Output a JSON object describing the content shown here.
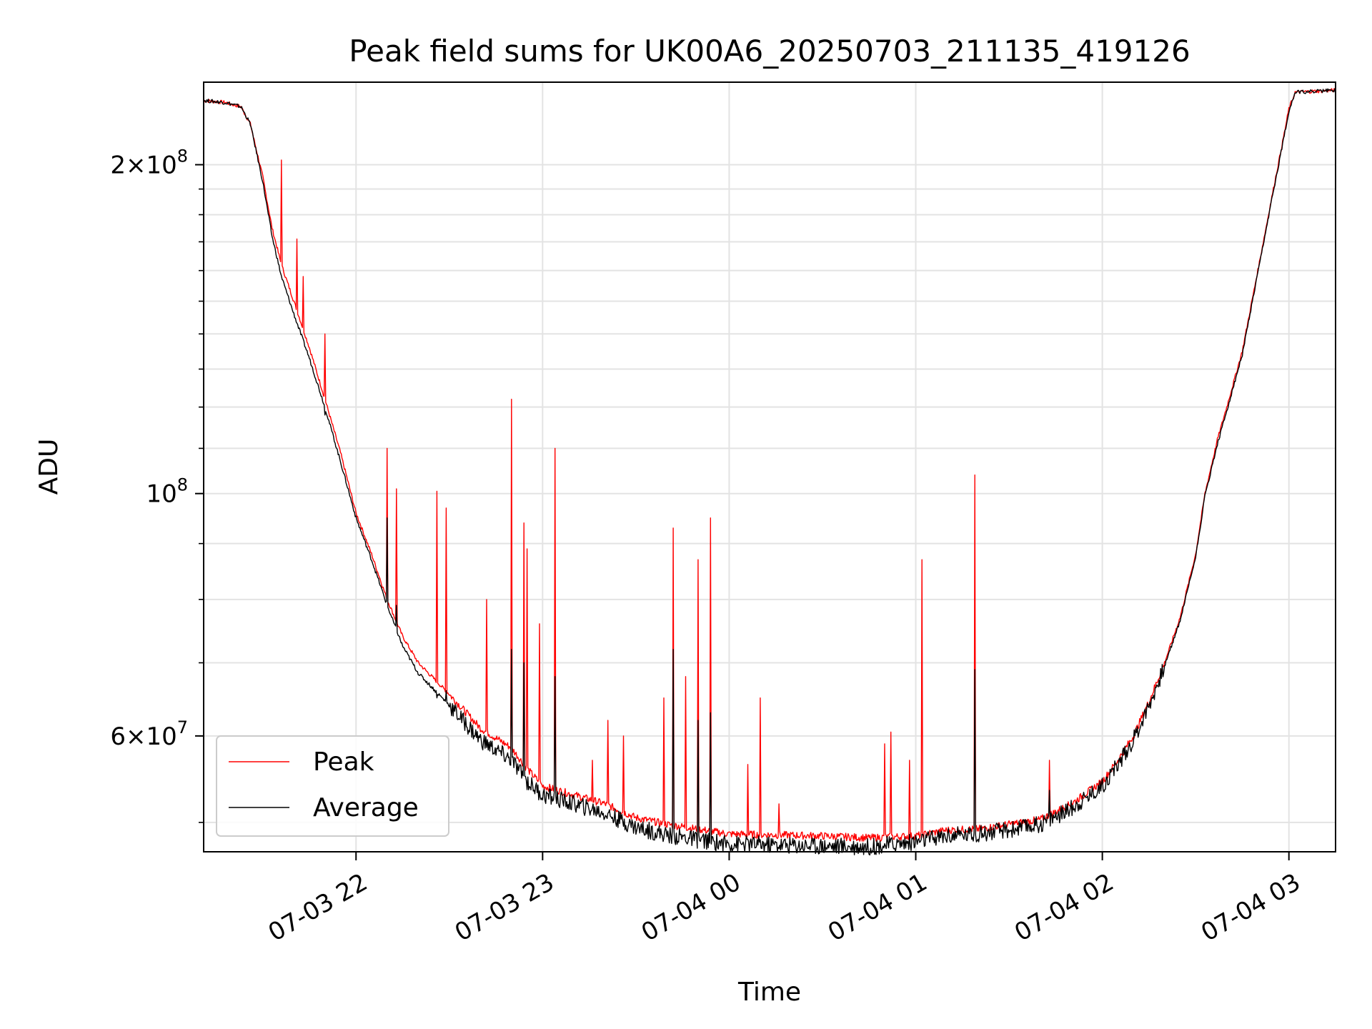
{
  "chart_data": {
    "type": "line",
    "title": "Peak field sums for UK00A6_20250703_211135_419126",
    "xlabel": "Time",
    "ylabel": "ADU",
    "y_scale": "log",
    "ylim": [
      47000000,
      238000000
    ],
    "xlim": [
      "07-03 21:11",
      "07-04 03:15"
    ],
    "x_ticks": [
      "07-03 22",
      "07-03 23",
      "07-04 00",
      "07-04 01",
      "07-04 02",
      "07-04 03"
    ],
    "y_ticks": [
      {
        "value": 200000000,
        "base": "2×10",
        "exp": "8"
      },
      {
        "value": 100000000,
        "base": "10",
        "exp": "8"
      },
      {
        "value": 60000000,
        "base": "6×10",
        "exp": "7"
      }
    ],
    "grid": true,
    "legend_position": "lower-left",
    "series": [
      {
        "name": "Peak",
        "color": "#ff0000",
        "baseline": [
          [
            "07-03 21:11",
            229000000
          ],
          [
            "07-03 21:18",
            228000000
          ],
          [
            "07-03 21:23",
            226000000
          ],
          [
            "07-03 21:26",
            218000000
          ],
          [
            "07-03 21:30",
            195000000
          ],
          [
            "07-03 21:33",
            175000000
          ],
          [
            "07-03 21:36",
            162000000
          ],
          [
            "07-03 21:40",
            150000000
          ],
          [
            "07-03 21:45",
            136000000
          ],
          [
            "07-03 21:50",
            122000000
          ],
          [
            "07-03 21:55",
            109000000
          ],
          [
            "07-03 22:00",
            96000000
          ],
          [
            "07-03 22:05",
            88000000
          ],
          [
            "07-03 22:10",
            80000000
          ],
          [
            "07-03 22:15",
            74000000
          ],
          [
            "07-03 22:20",
            70000000
          ],
          [
            "07-03 22:30",
            65500000
          ],
          [
            "07-03 22:40",
            61000000
          ],
          [
            "07-03 22:50",
            58500000
          ],
          [
            "07-03 22:55",
            56000000
          ],
          [
            "07-03 23:00",
            54000000
          ],
          [
            "07-03 23:10",
            53000000
          ],
          [
            "07-03 23:20",
            52000000
          ],
          [
            "07-03 23:30",
            50500000
          ],
          [
            "07-03 23:40",
            49800000
          ],
          [
            "07-03 23:50",
            49300000
          ],
          [
            "07-04 00:00",
            48800000
          ],
          [
            "07-04 00:15",
            48700000
          ],
          [
            "07-04 00:30",
            48600000
          ],
          [
            "07-04 00:45",
            48400000
          ],
          [
            "07-04 01:00",
            48600000
          ],
          [
            "07-04 01:10",
            49200000
          ],
          [
            "07-04 01:20",
            49300000
          ],
          [
            "07-04 01:30",
            49800000
          ],
          [
            "07-04 01:40",
            50300000
          ],
          [
            "07-04 01:50",
            52000000
          ],
          [
            "07-04 02:00",
            54500000
          ],
          [
            "07-04 02:05",
            57000000
          ],
          [
            "07-04 02:10",
            60000000
          ],
          [
            "07-04 02:15",
            64500000
          ],
          [
            "07-04 02:20",
            70000000
          ],
          [
            "07-04 02:25",
            77000000
          ],
          [
            "07-04 02:30",
            88000000
          ],
          [
            "07-04 02:33",
            100000000
          ],
          [
            "07-04 02:37",
            112000000
          ],
          [
            "07-04 02:40",
            120000000
          ],
          [
            "07-04 02:45",
            135000000
          ],
          [
            "07-04 02:50",
            160000000
          ],
          [
            "07-04 02:55",
            190000000
          ],
          [
            "07-04 02:58",
            210000000
          ],
          [
            "07-04 03:00",
            225000000
          ],
          [
            "07-04 03:02",
            233000000
          ],
          [
            "07-04 03:15",
            234000000
          ]
        ],
        "spikes": [
          [
            "07-03 21:36",
            202000000
          ],
          [
            "07-03 21:41",
            171000000
          ],
          [
            "07-03 21:43",
            158000000
          ],
          [
            "07-03 21:50",
            140000000
          ],
          [
            "07-03 22:10",
            110000000
          ],
          [
            "07-03 22:13",
            101000000
          ],
          [
            "07-03 22:26",
            100500000
          ],
          [
            "07-03 22:29",
            97000000
          ],
          [
            "07-03 22:42",
            80000000
          ],
          [
            "07-03 22:50",
            122000000
          ],
          [
            "07-03 22:54",
            94000000
          ],
          [
            "07-03 22:55",
            89000000
          ],
          [
            "07-03 22:59",
            76000000
          ],
          [
            "07-03 23:04",
            110000000
          ],
          [
            "07-03 23:16",
            57000000
          ],
          [
            "07-03 23:21",
            62000000
          ],
          [
            "07-03 23:26",
            60000000
          ],
          [
            "07-03 23:39",
            65000000
          ],
          [
            "07-03 23:42",
            93000000
          ],
          [
            "07-03 23:46",
            68000000
          ],
          [
            "07-03 23:50",
            87000000
          ],
          [
            "07-03 23:54",
            95000000
          ],
          [
            "07-04 00:06",
            56500000
          ],
          [
            "07-04 00:10",
            65000000
          ],
          [
            "07-04 00:16",
            52000000
          ],
          [
            "07-04 00:50",
            59000000
          ],
          [
            "07-04 00:52",
            60500000
          ],
          [
            "07-04 00:58",
            57000000
          ],
          [
            "07-04 01:02",
            87000000
          ],
          [
            "07-04 01:19",
            104000000
          ],
          [
            "07-04 01:43",
            57000000
          ]
        ]
      },
      {
        "name": "Average",
        "color": "#000000",
        "baseline": [
          [
            "07-03 21:11",
            229000000
          ],
          [
            "07-03 21:18",
            228000000
          ],
          [
            "07-03 21:23",
            226000000
          ],
          [
            "07-03 21:26",
            218000000
          ],
          [
            "07-03 21:30",
            193000000
          ],
          [
            "07-03 21:33",
            172000000
          ],
          [
            "07-03 21:36",
            158000000
          ],
          [
            "07-03 21:40",
            146000000
          ],
          [
            "07-03 21:45",
            133000000
          ],
          [
            "07-03 21:50",
            120000000
          ],
          [
            "07-03 21:55",
            107000000
          ],
          [
            "07-03 22:00",
            95000000
          ],
          [
            "07-03 22:05",
            87000000
          ],
          [
            "07-03 22:10",
            79000000
          ],
          [
            "07-03 22:15",
            72500000
          ],
          [
            "07-03 22:20",
            68500000
          ],
          [
            "07-03 22:30",
            64000000
          ],
          [
            "07-03 22:40",
            59500000
          ],
          [
            "07-03 22:50",
            57000000
          ],
          [
            "07-03 22:55",
            54500000
          ],
          [
            "07-03 23:00",
            53000000
          ],
          [
            "07-03 23:10",
            52000000
          ],
          [
            "07-03 23:20",
            51000000
          ],
          [
            "07-03 23:30",
            49500000
          ],
          [
            "07-03 23:40",
            48700000
          ],
          [
            "07-03 23:50",
            48200000
          ],
          [
            "07-04 00:00",
            47800000
          ],
          [
            "07-04 00:15",
            47700000
          ],
          [
            "07-04 00:30",
            47600000
          ],
          [
            "07-04 00:45",
            47500000
          ],
          [
            "07-04 01:00",
            48000000
          ],
          [
            "07-04 01:10",
            48600000
          ],
          [
            "07-04 01:20",
            48800000
          ],
          [
            "07-04 01:30",
            49200000
          ],
          [
            "07-04 01:40",
            49800000
          ],
          [
            "07-04 01:50",
            51500000
          ],
          [
            "07-04 02:00",
            54000000
          ],
          [
            "07-04 02:05",
            56500000
          ],
          [
            "07-04 02:10",
            59500000
          ],
          [
            "07-04 02:15",
            64000000
          ],
          [
            "07-04 02:20",
            69500000
          ],
          [
            "07-04 02:25",
            76500000
          ],
          [
            "07-04 02:30",
            87500000
          ],
          [
            "07-04 02:33",
            99500000
          ],
          [
            "07-04 02:37",
            111000000
          ],
          [
            "07-04 02:40",
            119000000
          ],
          [
            "07-04 02:45",
            134000000
          ],
          [
            "07-04 02:50",
            159000000
          ],
          [
            "07-04 02:55",
            189000000
          ],
          [
            "07-04 02:58",
            209000000
          ],
          [
            "07-04 03:00",
            224000000
          ],
          [
            "07-04 03:02",
            233000000
          ],
          [
            "07-04 03:15",
            234000000
          ]
        ],
        "spikes": [
          [
            "07-03 21:50",
            118000000
          ],
          [
            "07-03 22:10",
            95000000
          ],
          [
            "07-03 22:13",
            79000000
          ],
          [
            "07-03 22:26",
            65000000
          ],
          [
            "07-03 22:29",
            66000000
          ],
          [
            "07-03 22:50",
            72000000
          ],
          [
            "07-03 22:54",
            70000000
          ],
          [
            "07-03 23:04",
            68000000
          ],
          [
            "07-03 23:42",
            72000000
          ],
          [
            "07-03 23:50",
            62000000
          ],
          [
            "07-03 23:54",
            63000000
          ],
          [
            "07-04 01:19",
            69000000
          ],
          [
            "07-04 01:43",
            53500000
          ]
        ]
      }
    ]
  }
}
